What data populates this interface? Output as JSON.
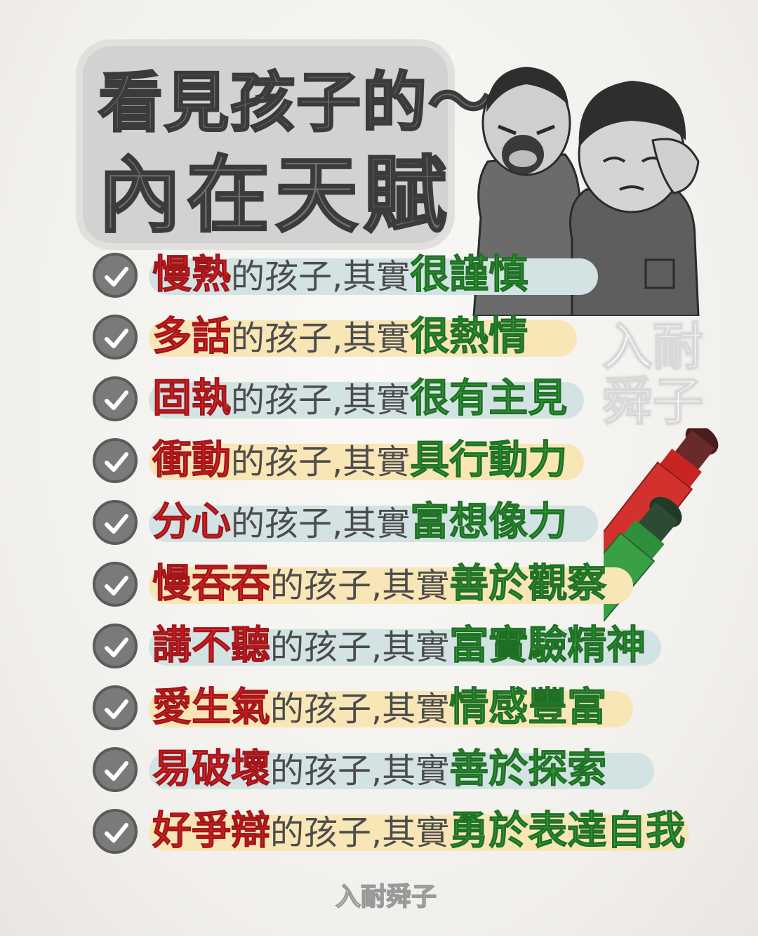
{
  "title": {
    "line1": "看見孩子的～",
    "line2": "內在天賦"
  },
  "watermark": {
    "big": "入耐舜子",
    "bottom": "入耐舜子"
  },
  "middle_phrase": "的孩子,其實",
  "items": [
    {
      "trait": "慢熟",
      "strength": "很謹慎",
      "highlight": "blue"
    },
    {
      "trait": "多話",
      "strength": "很熱情",
      "highlight": "yellow"
    },
    {
      "trait": "固執",
      "strength": "很有主見",
      "highlight": "blue"
    },
    {
      "trait": "衝動",
      "strength": "具行動力",
      "highlight": "yellow"
    },
    {
      "trait": "分心",
      "strength": "富想像力",
      "highlight": "blue"
    },
    {
      "trait": "慢吞吞",
      "strength": "善於觀察",
      "highlight": "yellow"
    },
    {
      "trait": "講不聽",
      "strength": "富實驗精神",
      "highlight": "blue"
    },
    {
      "trait": "愛生氣",
      "strength": "情感豐富",
      "highlight": "yellow"
    },
    {
      "trait": "易破壞",
      "strength": "善於探索",
      "highlight": "blue"
    },
    {
      "trait": "好爭辯",
      "strength": "勇於表達自我",
      "highlight": "yellow"
    }
  ],
  "colors": {
    "trait": "#d8262a",
    "strength": "#2f9a36",
    "highlight_blue": "#d3e3e3",
    "highlight_yellow": "#f8e6b6",
    "check": "#7a7a7a"
  },
  "icons": [
    "check-icon",
    "red-marker",
    "green-marker"
  ]
}
